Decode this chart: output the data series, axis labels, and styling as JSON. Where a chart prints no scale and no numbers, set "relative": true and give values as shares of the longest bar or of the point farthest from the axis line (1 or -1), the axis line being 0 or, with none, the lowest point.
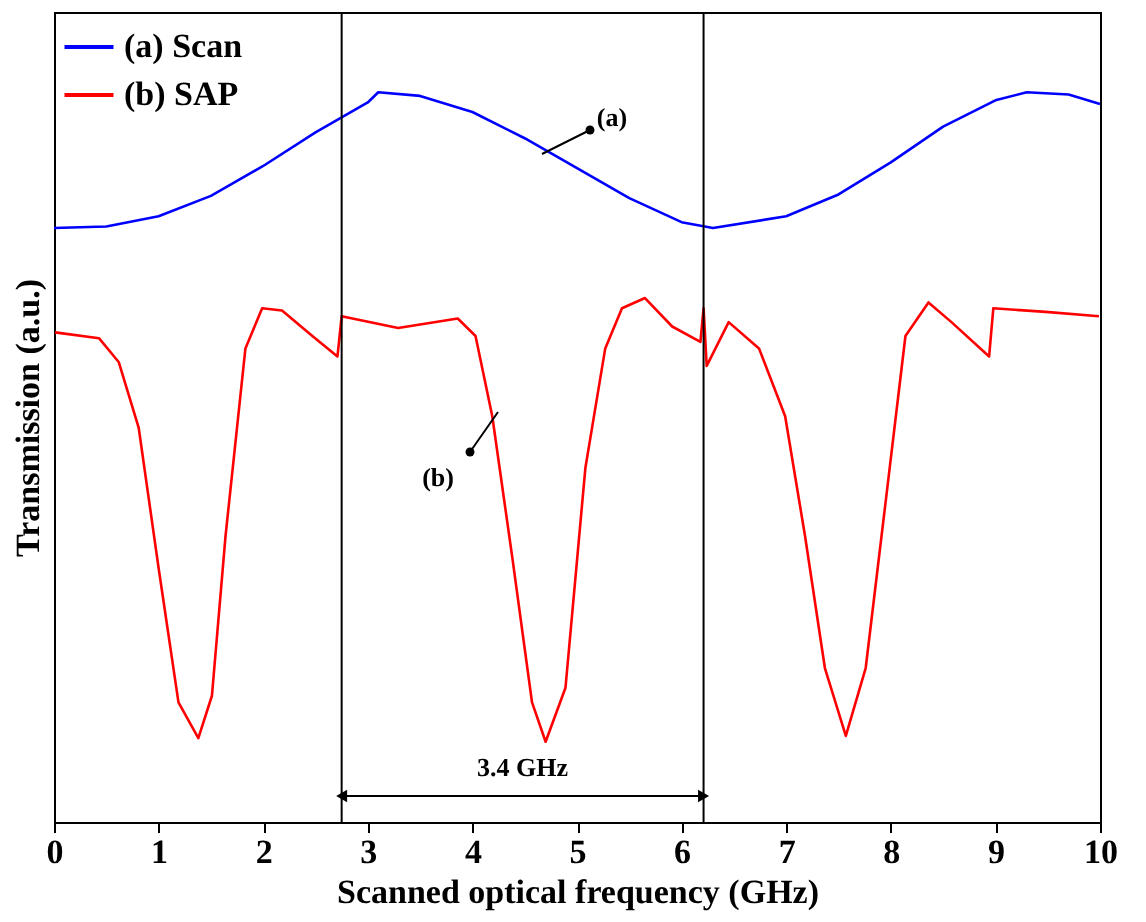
{
  "chart_data": {
    "type": "line",
    "relative": true,
    "xlabel": "Scanned optical frequency (GHz)",
    "ylabel": "Transmission (a.u.)",
    "xlim": [
      0,
      10
    ],
    "xticks": [
      0,
      1,
      2,
      3,
      4,
      5,
      6,
      7,
      8,
      9,
      10
    ],
    "legend": "top left",
    "grid": false,
    "tick_labels": "x",
    "series": [
      {
        "name": "(a) Scan",
        "color": "#0000ff",
        "x": [
          0,
          0.5,
          1,
          1.5,
          2,
          2.5,
          3,
          3.1,
          3.5,
          4,
          4.5,
          5,
          5.5,
          6,
          6.3,
          7,
          7.5,
          8,
          8.5,
          9,
          9.3,
          9.7,
          10
        ],
        "values": [
          0.814,
          0.816,
          0.83,
          0.858,
          0.899,
          0.945,
          0.986,
          1.0,
          0.995,
          0.973,
          0.937,
          0.896,
          0.855,
          0.822,
          0.814,
          0.83,
          0.86,
          0.904,
          0.953,
          0.989,
          1.0,
          0.997,
          0.984
        ]
      },
      {
        "name": "(b) SAP",
        "color": "#ff0000",
        "x": [
          0.01,
          0.43,
          0.62,
          0.81,
          1.0,
          1.19,
          1.38,
          1.51,
          1.64,
          1.83,
          1.99,
          2.18,
          2.47,
          2.71,
          2.75,
          3.29,
          3.86,
          4.03,
          4.19,
          4.38,
          4.57,
          4.7,
          4.89,
          5.08,
          5.27,
          5.43,
          5.65,
          5.91,
          6.18,
          6.21,
          6.24,
          6.45,
          6.74,
          6.99,
          7.18,
          7.37,
          7.57,
          7.76,
          7.95,
          8.14,
          8.36,
          8.58,
          8.94,
          8.98,
          9.48,
          9.99
        ],
        "values": [
          0.671,
          0.663,
          0.63,
          0.54,
          0.348,
          0.164,
          0.115,
          0.173,
          0.392,
          0.649,
          0.704,
          0.701,
          0.666,
          0.638,
          0.693,
          0.677,
          0.69,
          0.666,
          0.556,
          0.364,
          0.164,
          0.11,
          0.184,
          0.485,
          0.649,
          0.704,
          0.718,
          0.679,
          0.658,
          0.704,
          0.625,
          0.685,
          0.649,
          0.556,
          0.392,
          0.211,
          0.118,
          0.211,
          0.438,
          0.666,
          0.712,
          0.685,
          0.638,
          0.704,
          0.699,
          0.693
        ]
      }
    ],
    "ref_lines": [
      {
        "axis": "x",
        "value": 2.75,
        "color": "#000000"
      },
      {
        "axis": "x",
        "value": 6.21,
        "color": "#000000"
      }
    ],
    "annotations": [
      "3.4 GHz",
      "(a)",
      "(b)"
    ]
  }
}
